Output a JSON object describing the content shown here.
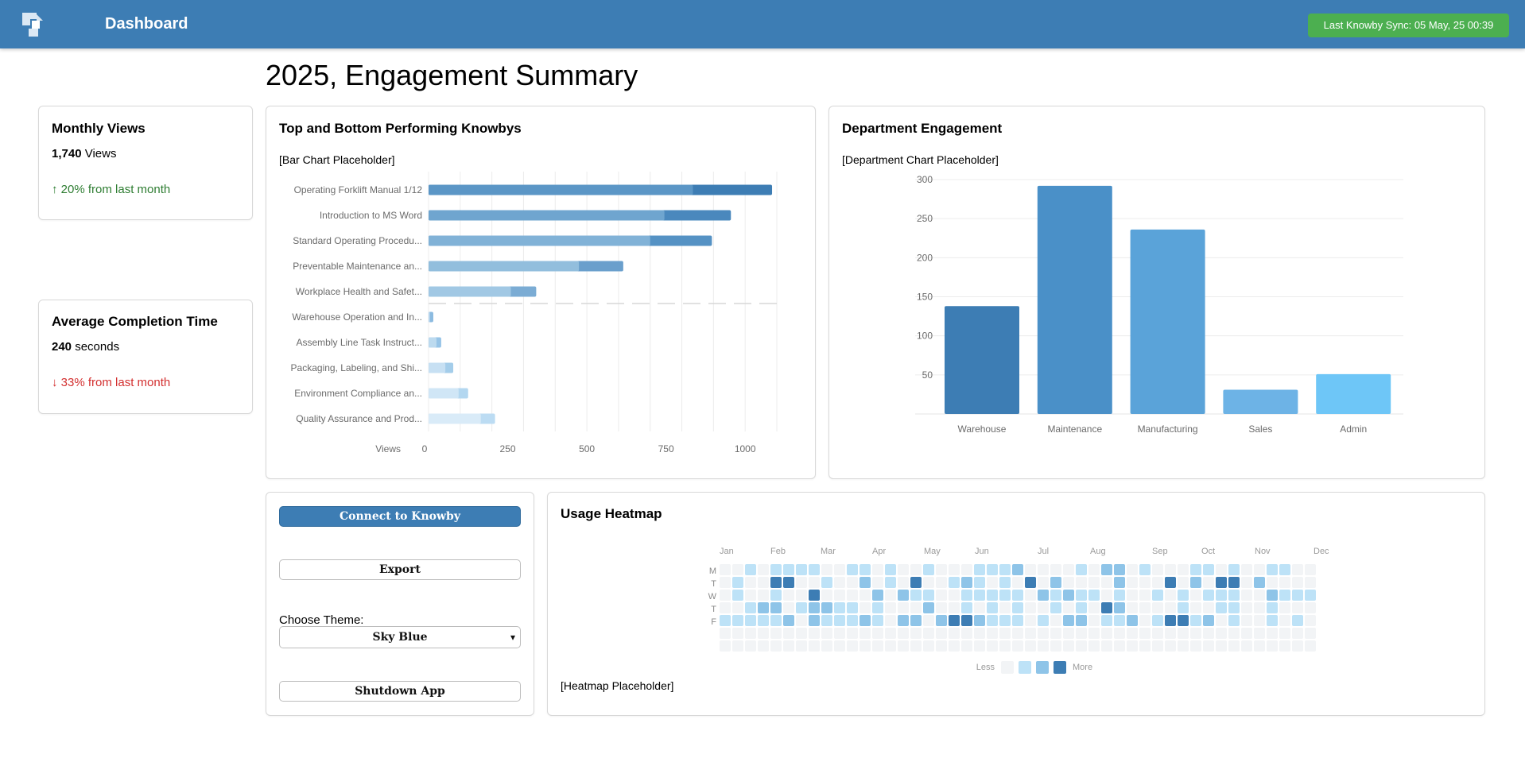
{
  "header": {
    "title": "Dashboard",
    "sync_label": "Last Knowby Sync: 05 May, 25 00:39",
    "logo_icon": "knowby-logo-icon"
  },
  "page_title": "2025, Engagement Summary",
  "monthly_views": {
    "title": "Monthly Views",
    "value": "1,740",
    "unit": "Views",
    "delta": "↑ 20% from last month"
  },
  "avg_completion": {
    "title": "Average Completion Time",
    "value": "240",
    "unit": "seconds",
    "delta": "↓ 33% from last month"
  },
  "top_bottom": {
    "title": "Top and Bottom Performing Knowbys",
    "placeholder": "[Bar Chart Placeholder]"
  },
  "department": {
    "title": "Department Engagement",
    "placeholder": "[Department Chart Placeholder]"
  },
  "actions": {
    "connect_label": "Connect to Knowby",
    "export_label": "Export",
    "theme_label": "Choose Theme:",
    "theme_value": "Sky Blue",
    "shutdown_label": "Shutdown App"
  },
  "heatmap": {
    "title": "Usage Heatmap",
    "placeholder": "[Heatmap Placeholder]",
    "legend_less": "Less",
    "legend_more": "More"
  },
  "colors": {
    "header": "#3d7db4",
    "sync_badge": "#4caf50",
    "up": "#2e7d32",
    "down": "#d32f2f"
  },
  "chart_data": [
    {
      "type": "bar",
      "orientation": "horizontal",
      "categories": [
        "Operating Forklift Manual 1/12",
        "Introduction to MS Word",
        "Standard Operating Procedu...",
        "Preventable Maintenance an...",
        "Workplace Health and Safet...",
        "Warehouse Operation and In...",
        "Assembly Line Task Instruct...",
        "Packaging, Labeling, and Shi...",
        "Environment Compliance an...",
        "Quality Assurance and Prod..."
      ],
      "series": [
        {
          "values": [
            1085,
            955,
            895,
            615,
            340,
            15,
            40,
            78,
            125,
            210
          ]
        },
        {
          "values": [
            250,
            210,
            195,
            140,
            80,
            10,
            15,
            25,
            30,
            45
          ]
        }
      ],
      "xlabel": "Views",
      "xticks": [
        0,
        250,
        500,
        750,
        1000
      ],
      "xlim": [
        0,
        1100
      ]
    },
    {
      "type": "bar",
      "categories": [
        "Warehouse",
        "Maintenance",
        "Manufacturing",
        "Sales",
        "Admin"
      ],
      "values": [
        138,
        292,
        236,
        31,
        51
      ],
      "yticks": [
        50,
        100,
        150,
        200,
        250,
        300
      ],
      "ylim": [
        0,
        300
      ],
      "colors": [
        "#3d7db4",
        "#4a90c8",
        "#5aa3d9",
        "#6db3e6",
        "#6ec6f7"
      ]
    },
    {
      "type": "heatmap",
      "months": [
        "Jan",
        "Feb",
        "Mar",
        "Apr",
        "May",
        "Jun",
        "Jul",
        "Aug",
        "Sep",
        "Oct",
        "Nov",
        "Dec"
      ],
      "days": [
        "M",
        "T",
        "W",
        "T",
        "F"
      ],
      "rows": [
        "00101111001101001000111200001022010001101001100",
        "01003300100201030012101030200002000302033020000",
        "01001003000020211001111102121101001010111002111",
        "00122012211010002001010100101032000010011001000",
        "11111202111210220233211101022011201331201001010",
        "00000000000000000000000000000000000000000000000",
        "00000000000000000000000000000000000000000000000"
      ],
      "levels": [
        "#f2f4f6",
        "#bde2f7",
        "#8ec4e8",
        "#3d7db4"
      ]
    }
  ]
}
